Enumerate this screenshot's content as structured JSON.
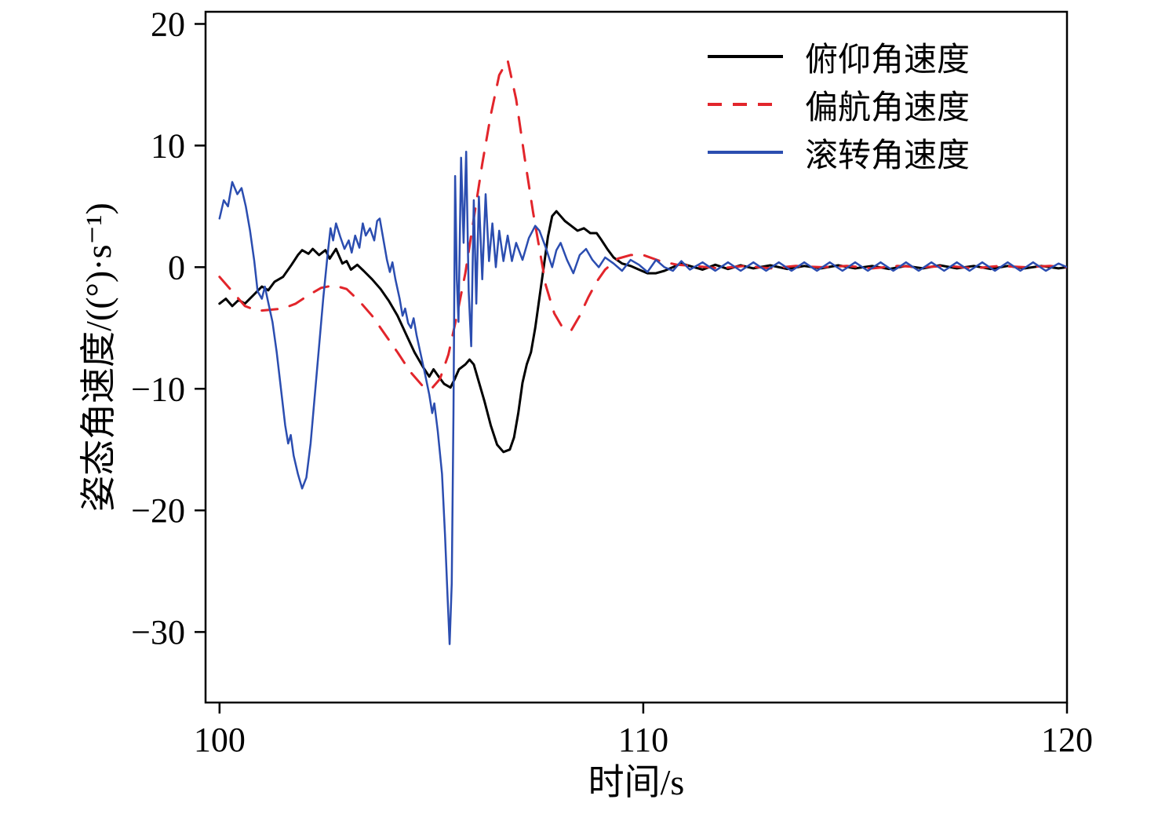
{
  "figure": {
    "background": "#ffffff",
    "axis_color": "#000000"
  },
  "axis": {
    "xlabel": "时间/s",
    "ylabel": "姿态角速度/((°)·s⁻¹)"
  },
  "legend": {
    "items": [
      {
        "label": "俯仰角速度"
      },
      {
        "label": "偏航角速度"
      },
      {
        "label": "滚转角速度"
      }
    ]
  },
  "chart_data": {
    "type": "line",
    "title": "",
    "xlabel": "时间/s",
    "ylabel": "姿态角速度/((°)·s⁻¹)",
    "xlim": [
      99.67,
      120
    ],
    "ylim": [
      -35.8,
      21
    ],
    "xticks": [
      100,
      110,
      120
    ],
    "yticks": [
      20,
      10,
      0,
      -10,
      -20,
      -30
    ],
    "grid": false,
    "legend_position": "top-right",
    "series": [
      {
        "name": "俯仰角速度",
        "color": "#000000",
        "style": "solid",
        "width": 3,
        "points": [
          [
            100,
            -3
          ],
          [
            100.15,
            -2.6
          ],
          [
            100.3,
            -3.2
          ],
          [
            100.45,
            -2.7
          ],
          [
            100.6,
            -3
          ],
          [
            100.8,
            -2.3
          ],
          [
            101,
            -1.6
          ],
          [
            101.15,
            -1.9
          ],
          [
            101.3,
            -1.2
          ],
          [
            101.5,
            -0.8
          ],
          [
            101.7,
            0.2
          ],
          [
            101.85,
            1
          ],
          [
            101.95,
            1.4
          ],
          [
            102.1,
            1.1
          ],
          [
            102.2,
            1.5
          ],
          [
            102.35,
            1
          ],
          [
            102.5,
            1.4
          ],
          [
            102.6,
            0.7
          ],
          [
            102.75,
            1.5
          ],
          [
            102.9,
            0.3
          ],
          [
            103,
            0.5
          ],
          [
            103.1,
            -0.2
          ],
          [
            103.25,
            0.2
          ],
          [
            103.4,
            -0.3
          ],
          [
            103.6,
            -1
          ],
          [
            103.8,
            -1.8
          ],
          [
            104,
            -2.8
          ],
          [
            104.2,
            -4
          ],
          [
            104.4,
            -5.5
          ],
          [
            104.6,
            -7
          ],
          [
            104.8,
            -8.2
          ],
          [
            104.95,
            -9
          ],
          [
            105.05,
            -8.4
          ],
          [
            105.15,
            -8.9
          ],
          [
            105.3,
            -9.6
          ],
          [
            105.45,
            -9.9
          ],
          [
            105.55,
            -9.2
          ],
          [
            105.65,
            -8.4
          ],
          [
            105.8,
            -8
          ],
          [
            105.9,
            -7.6
          ],
          [
            106,
            -8
          ],
          [
            106.1,
            -9.2
          ],
          [
            106.25,
            -11
          ],
          [
            106.4,
            -13
          ],
          [
            106.55,
            -14.6
          ],
          [
            106.7,
            -15.2
          ],
          [
            106.85,
            -15
          ],
          [
            106.95,
            -14
          ],
          [
            107.05,
            -12
          ],
          [
            107.15,
            -9.5
          ],
          [
            107.25,
            -8
          ],
          [
            107.35,
            -7
          ],
          [
            107.45,
            -5
          ],
          [
            107.55,
            -2.5
          ],
          [
            107.65,
            0
          ],
          [
            107.75,
            2.5
          ],
          [
            107.85,
            4.2
          ],
          [
            107.95,
            4.6
          ],
          [
            108.05,
            4.2
          ],
          [
            108.15,
            3.8
          ],
          [
            108.3,
            3.4
          ],
          [
            108.45,
            3
          ],
          [
            108.6,
            3.2
          ],
          [
            108.75,
            2.8
          ],
          [
            108.9,
            2.8
          ],
          [
            109,
            2.3
          ],
          [
            109.15,
            1.5
          ],
          [
            109.3,
            0.8
          ],
          [
            109.5,
            0.3
          ],
          [
            109.7,
            0.1
          ],
          [
            109.9,
            -0.2
          ],
          [
            110.1,
            -0.5
          ],
          [
            110.3,
            -0.5
          ],
          [
            110.5,
            -0.3
          ],
          [
            110.7,
            0
          ],
          [
            110.9,
            0.3
          ],
          [
            111.1,
            0.1
          ],
          [
            111.4,
            -0.2
          ],
          [
            111.7,
            0.2
          ],
          [
            112,
            -0.15
          ],
          [
            112.3,
            0.15
          ],
          [
            112.6,
            -0.1
          ],
          [
            113,
            0.15
          ],
          [
            113.4,
            -0.15
          ],
          [
            113.8,
            0.1
          ],
          [
            114.2,
            -0.1
          ],
          [
            114.6,
            0.15
          ],
          [
            115,
            -0.1
          ],
          [
            115.4,
            0.1
          ],
          [
            115.8,
            -0.15
          ],
          [
            116.2,
            0.1
          ],
          [
            116.6,
            -0.1
          ],
          [
            117,
            0.15
          ],
          [
            117.4,
            -0.1
          ],
          [
            117.8,
            0.1
          ],
          [
            118.2,
            -0.15
          ],
          [
            118.6,
            0.1
          ],
          [
            119,
            -0.1
          ],
          [
            119.4,
            0.1
          ],
          [
            119.8,
            -0.1
          ],
          [
            120,
            0
          ]
        ]
      },
      {
        "name": "偏航角速度",
        "color": "#e2252b",
        "style": "dashed",
        "width": 3,
        "points": [
          [
            100,
            -0.8
          ],
          [
            100.3,
            -2
          ],
          [
            100.6,
            -3.2
          ],
          [
            100.9,
            -3.6
          ],
          [
            101.2,
            -3.5
          ],
          [
            101.5,
            -3.4
          ],
          [
            101.8,
            -3
          ],
          [
            102.1,
            -2.3
          ],
          [
            102.4,
            -1.7
          ],
          [
            102.7,
            -1.5
          ],
          [
            103,
            -1.8
          ],
          [
            103.3,
            -2.8
          ],
          [
            103.6,
            -4
          ],
          [
            103.9,
            -5.5
          ],
          [
            104.2,
            -7
          ],
          [
            104.5,
            -8.6
          ],
          [
            104.8,
            -9.8
          ],
          [
            105,
            -10
          ],
          [
            105.2,
            -9.2
          ],
          [
            105.4,
            -7.2
          ],
          [
            105.6,
            -4
          ],
          [
            105.8,
            -0.5
          ],
          [
            106,
            4
          ],
          [
            106.2,
            8.5
          ],
          [
            106.4,
            12.5
          ],
          [
            106.6,
            15.8
          ],
          [
            106.8,
            17
          ],
          [
            107,
            13.8
          ],
          [
            107.2,
            9
          ],
          [
            107.4,
            4.5
          ],
          [
            107.55,
            1.5
          ],
          [
            107.7,
            -1.5
          ],
          [
            107.9,
            -3.8
          ],
          [
            108.1,
            -5
          ],
          [
            108.3,
            -5.2
          ],
          [
            108.5,
            -4
          ],
          [
            108.7,
            -2.5
          ],
          [
            108.9,
            -1.2
          ],
          [
            109.1,
            -0.2
          ],
          [
            109.4,
            0.7
          ],
          [
            109.7,
            1
          ],
          [
            110,
            1
          ],
          [
            110.4,
            0.5
          ],
          [
            110.8,
            0.2
          ],
          [
            111.2,
            0.1
          ],
          [
            111.8,
            -0.1
          ],
          [
            112.4,
            0.1
          ],
          [
            113,
            -0.1
          ],
          [
            113.6,
            0.1
          ],
          [
            114.2,
            0
          ],
          [
            114.8,
            0.1
          ],
          [
            115.4,
            -0.1
          ],
          [
            116,
            0.1
          ],
          [
            116.6,
            0
          ],
          [
            117.2,
            0.1
          ],
          [
            117.8,
            -0.1
          ],
          [
            118.4,
            0.1
          ],
          [
            119,
            0
          ],
          [
            119.6,
            0.1
          ],
          [
            120,
            0
          ]
        ]
      },
      {
        "name": "滚转角速度",
        "color": "#2b4db0",
        "style": "solid",
        "width": 2.5,
        "points": [
          [
            100,
            4
          ],
          [
            100.1,
            5.5
          ],
          [
            100.2,
            5
          ],
          [
            100.3,
            7
          ],
          [
            100.42,
            6
          ],
          [
            100.52,
            6.5
          ],
          [
            100.62,
            5
          ],
          [
            100.72,
            3
          ],
          [
            100.82,
            0.5
          ],
          [
            100.9,
            -2
          ],
          [
            101,
            -2.6
          ],
          [
            101.07,
            -1.6
          ],
          [
            101.15,
            -2.9
          ],
          [
            101.25,
            -4.5
          ],
          [
            101.35,
            -7
          ],
          [
            101.45,
            -10
          ],
          [
            101.55,
            -13
          ],
          [
            101.62,
            -14.5
          ],
          [
            101.68,
            -13.8
          ],
          [
            101.75,
            -15.5
          ],
          [
            101.85,
            -17
          ],
          [
            101.95,
            -18.2
          ],
          [
            102.05,
            -17.3
          ],
          [
            102.15,
            -14.5
          ],
          [
            102.25,
            -10.5
          ],
          [
            102.35,
            -6.5
          ],
          [
            102.45,
            -2.5
          ],
          [
            102.55,
            1
          ],
          [
            102.62,
            3.2
          ],
          [
            102.68,
            2.2
          ],
          [
            102.75,
            3.6
          ],
          [
            102.85,
            2.5
          ],
          [
            102.95,
            1.5
          ],
          [
            103.05,
            2.2
          ],
          [
            103.12,
            1.2
          ],
          [
            103.2,
            2.6
          ],
          [
            103.3,
            1.6
          ],
          [
            103.38,
            3.6
          ],
          [
            103.45,
            2.6
          ],
          [
            103.55,
            3.2
          ],
          [
            103.65,
            2.2
          ],
          [
            103.72,
            3.8
          ],
          [
            103.78,
            4
          ],
          [
            103.85,
            2.6
          ],
          [
            103.95,
            0.6
          ],
          [
            104.02,
            -0.4
          ],
          [
            104.08,
            0.4
          ],
          [
            104.15,
            -1
          ],
          [
            104.25,
            -2.6
          ],
          [
            104.32,
            -4
          ],
          [
            104.38,
            -3.4
          ],
          [
            104.45,
            -4.6
          ],
          [
            104.52,
            -5
          ],
          [
            104.58,
            -4.2
          ],
          [
            104.65,
            -5.6
          ],
          [
            104.75,
            -7.2
          ],
          [
            104.85,
            -8.8
          ],
          [
            104.95,
            -10.5
          ],
          [
            105.02,
            -12
          ],
          [
            105.07,
            -11.2
          ],
          [
            105.15,
            -13.5
          ],
          [
            105.25,
            -17
          ],
          [
            105.32,
            -22
          ],
          [
            105.38,
            -27
          ],
          [
            105.43,
            -31
          ],
          [
            105.48,
            -26
          ],
          [
            105.52,
            -12
          ],
          [
            105.56,
            7.5
          ],
          [
            105.6,
            -1
          ],
          [
            105.64,
            -4.5
          ],
          [
            105.7,
            9
          ],
          [
            105.76,
            2
          ],
          [
            105.82,
            9.5
          ],
          [
            105.88,
            -2
          ],
          [
            105.94,
            -6.5
          ],
          [
            106,
            5.5
          ],
          [
            106.06,
            -3
          ],
          [
            106.12,
            5.8
          ],
          [
            106.2,
            -1
          ],
          [
            106.28,
            6
          ],
          [
            106.36,
            0.5
          ],
          [
            106.44,
            3.6
          ],
          [
            106.52,
            0
          ],
          [
            106.6,
            3
          ],
          [
            106.7,
            0.5
          ],
          [
            106.8,
            2.6
          ],
          [
            106.9,
            0.5
          ],
          [
            107,
            2
          ],
          [
            107.15,
            0.6
          ],
          [
            107.3,
            2.4
          ],
          [
            107.45,
            3.4
          ],
          [
            107.55,
            3
          ],
          [
            107.7,
            1.6
          ],
          [
            107.85,
            0
          ],
          [
            107.95,
            1.4
          ],
          [
            108.05,
            2
          ],
          [
            108.2,
            0.6
          ],
          [
            108.35,
            -0.5
          ],
          [
            108.5,
            1
          ],
          [
            108.65,
            1.5
          ],
          [
            108.8,
            0.6
          ],
          [
            108.95,
            0
          ],
          [
            109.1,
            0.8
          ],
          [
            109.3,
            0.3
          ],
          [
            109.5,
            -0.3
          ],
          [
            109.7,
            0.6
          ],
          [
            109.9,
            0.2
          ],
          [
            110.1,
            -0.4
          ],
          [
            110.3,
            0.6
          ],
          [
            110.5,
            0
          ],
          [
            110.7,
            -0.3
          ],
          [
            110.9,
            0.5
          ],
          [
            111.1,
            -0.2
          ],
          [
            111.4,
            0.4
          ],
          [
            111.7,
            -0.3
          ],
          [
            112,
            0.4
          ],
          [
            112.3,
            -0.3
          ],
          [
            112.6,
            0.4
          ],
          [
            112.9,
            -0.3
          ],
          [
            113.2,
            0.4
          ],
          [
            113.5,
            -0.3
          ],
          [
            113.8,
            0.4
          ],
          [
            114.1,
            -0.3
          ],
          [
            114.4,
            0.4
          ],
          [
            114.7,
            -0.3
          ],
          [
            115,
            0.4
          ],
          [
            115.3,
            -0.3
          ],
          [
            115.6,
            0.4
          ],
          [
            115.9,
            -0.3
          ],
          [
            116.2,
            0.4
          ],
          [
            116.5,
            -0.3
          ],
          [
            116.8,
            0.4
          ],
          [
            117.1,
            -0.3
          ],
          [
            117.4,
            0.4
          ],
          [
            117.7,
            -0.3
          ],
          [
            118,
            0.4
          ],
          [
            118.3,
            -0.3
          ],
          [
            118.6,
            0.4
          ],
          [
            118.9,
            -0.3
          ],
          [
            119.2,
            0.4
          ],
          [
            119.5,
            -0.3
          ],
          [
            119.8,
            0.3
          ],
          [
            120,
            0
          ]
        ]
      }
    ]
  }
}
